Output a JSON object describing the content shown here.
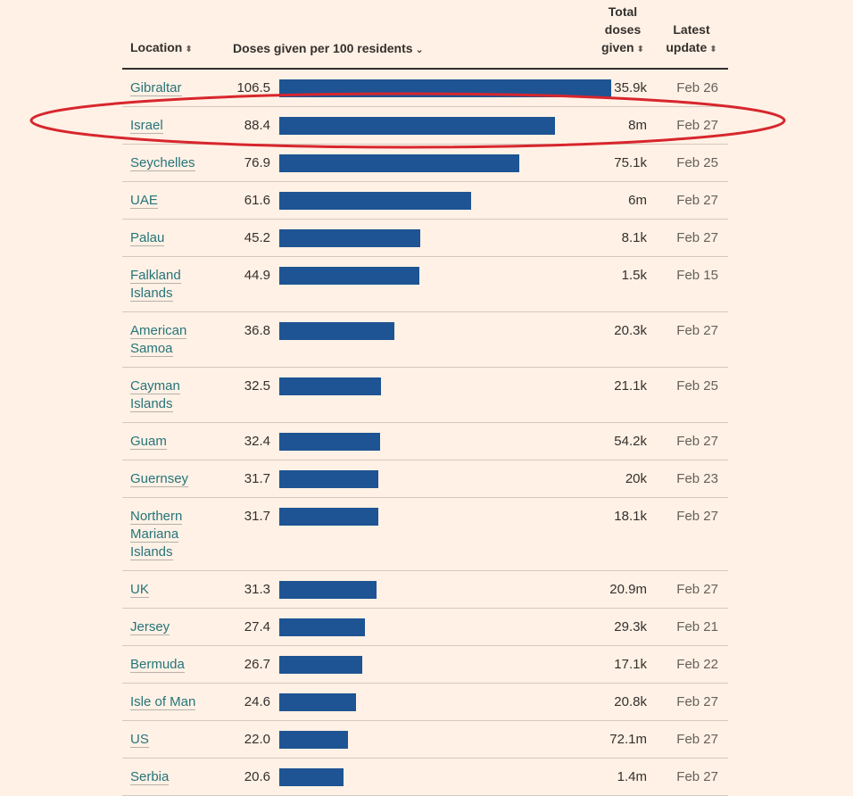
{
  "header": {
    "location": "Location",
    "doses": "Doses given per 100 residents",
    "total_line1": "Total",
    "total_line2": "doses",
    "total_line3": "given",
    "update_line1": "Latest",
    "update_line2": "update",
    "sort_icon": "⬍",
    "sort_active_icon": "⌄"
  },
  "chart_data": {
    "type": "bar",
    "xlabel": "Doses given per 100 residents",
    "xlim": [
      0,
      106.5
    ],
    "categories": [
      "Gibraltar",
      "Israel",
      "Seychelles",
      "UAE",
      "Palau",
      "Falkland Islands",
      "American Samoa",
      "Cayman Islands",
      "Guam",
      "Guernsey",
      "Northern Mariana Islands",
      "UK",
      "Jersey",
      "Bermuda",
      "Isle of Man",
      "US",
      "Serbia"
    ],
    "values": [
      106.5,
      88.4,
      76.9,
      61.6,
      45.2,
      44.9,
      36.8,
      32.5,
      32.4,
      31.7,
      31.7,
      31.3,
      27.4,
      26.7,
      24.6,
      22.0,
      20.6
    ],
    "value_labels": [
      "106.5",
      "88.4",
      "76.9",
      "61.6",
      "45.2",
      "44.9",
      "36.8",
      "32.5",
      "32.4",
      "31.7",
      "31.7",
      "31.3",
      "27.4",
      "26.7",
      "24.6",
      "22.0",
      "20.6"
    ],
    "total_doses": [
      "35.9k",
      "8m",
      "75.1k",
      "6m",
      "8.1k",
      "1.5k",
      "20.3k",
      "21.1k",
      "54.2k",
      "20k",
      "18.1k",
      "20.9m",
      "29.3k",
      "17.1k",
      "20.8k",
      "72.1m",
      "1.4m"
    ],
    "latest_update": [
      "Feb 26",
      "Feb 27",
      "Feb 25",
      "Feb 27",
      "Feb 27",
      "Feb 15",
      "Feb 27",
      "Feb 25",
      "Feb 27",
      "Feb 23",
      "Feb 27",
      "Feb 27",
      "Feb 21",
      "Feb 22",
      "Feb 27",
      "Feb 27",
      "Feb 27"
    ],
    "location_lines": [
      [
        "Gibraltar"
      ],
      [
        "Israel"
      ],
      [
        "Seychelles"
      ],
      [
        "UAE"
      ],
      [
        "Palau"
      ],
      [
        "Falkland",
        "Islands"
      ],
      [
        "American",
        "Samoa"
      ],
      [
        "Cayman",
        "Islands"
      ],
      [
        "Guam"
      ],
      [
        "Guernsey"
      ],
      [
        "Northern",
        "Mariana",
        "Islands"
      ],
      [
        "UK"
      ],
      [
        "Jersey"
      ],
      [
        "Bermuda"
      ],
      [
        "Isle of Man"
      ],
      [
        "US"
      ],
      [
        "Serbia"
      ]
    ],
    "highlighted": "Israel",
    "bar_color": "#1e5493",
    "highlight_color": "#d7262d"
  }
}
